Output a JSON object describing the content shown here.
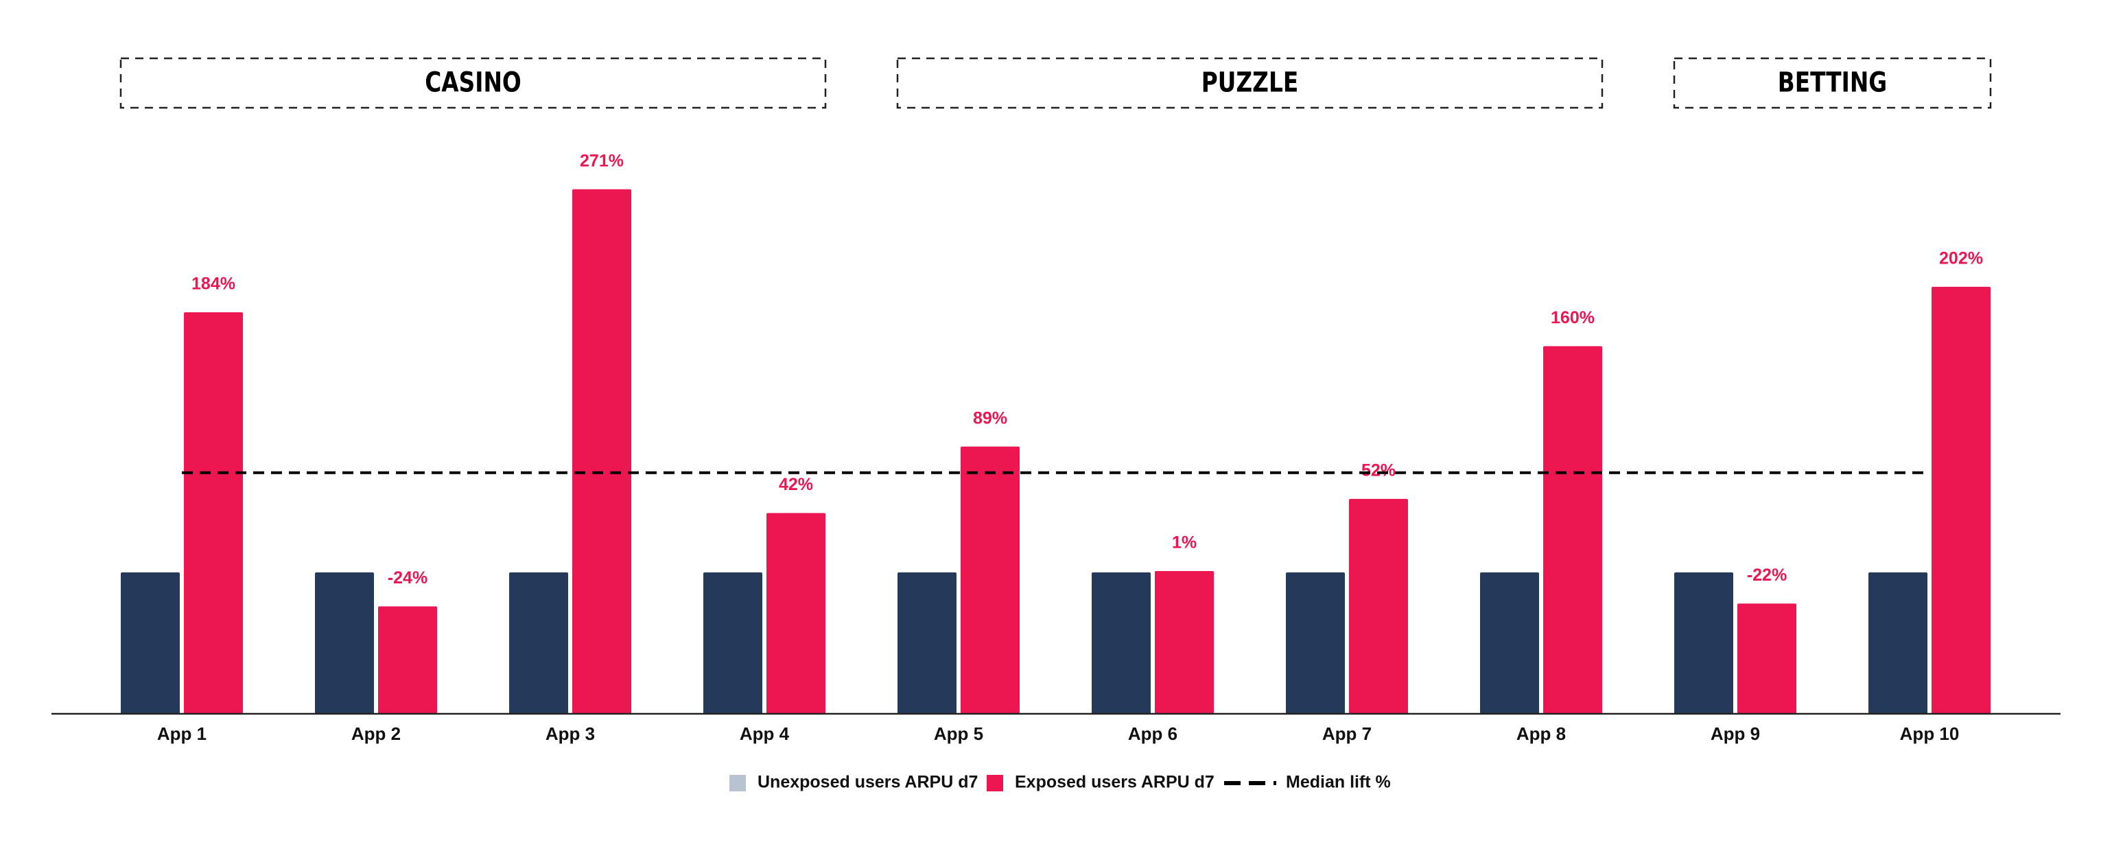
{
  "chart_data": {
    "type": "bar",
    "categories": [
      "App 1",
      "App 2",
      "App 3",
      "App 4",
      "App 5",
      "App 6",
      "App 7",
      "App 8",
      "App 9",
      "App 10"
    ],
    "groups": [
      {
        "label": "CASINO",
        "from": 0,
        "to": 3
      },
      {
        "label": "PUZZLE",
        "from": 4,
        "to": 7
      },
      {
        "label": "BETTING",
        "from": 8,
        "to": 9
      }
    ],
    "series": [
      {
        "name": "Unexposed users ARPU d7",
        "color": "#253a5a",
        "legend_color": "#b8c3d1",
        "values": [
          100,
          100,
          100,
          100,
          100,
          100,
          100,
          100,
          100,
          100
        ]
      },
      {
        "name": "Exposed users ARPU d7",
        "color": "#ec1651",
        "legend_color": "#ec1651",
        "values": [
          284,
          76,
          371,
          142,
          189,
          101,
          152,
          260,
          78,
          302
        ],
        "value_labels": [
          "184%",
          "-24%",
          "271%",
          "42%",
          "89%",
          "1%",
          "52%",
          "160%",
          "-22%",
          "202%"
        ]
      }
    ],
    "reference_line": {
      "name": "Median lift %",
      "value": 170.5,
      "color": "#000000"
    },
    "ylim": [
      0,
      400
    ]
  }
}
